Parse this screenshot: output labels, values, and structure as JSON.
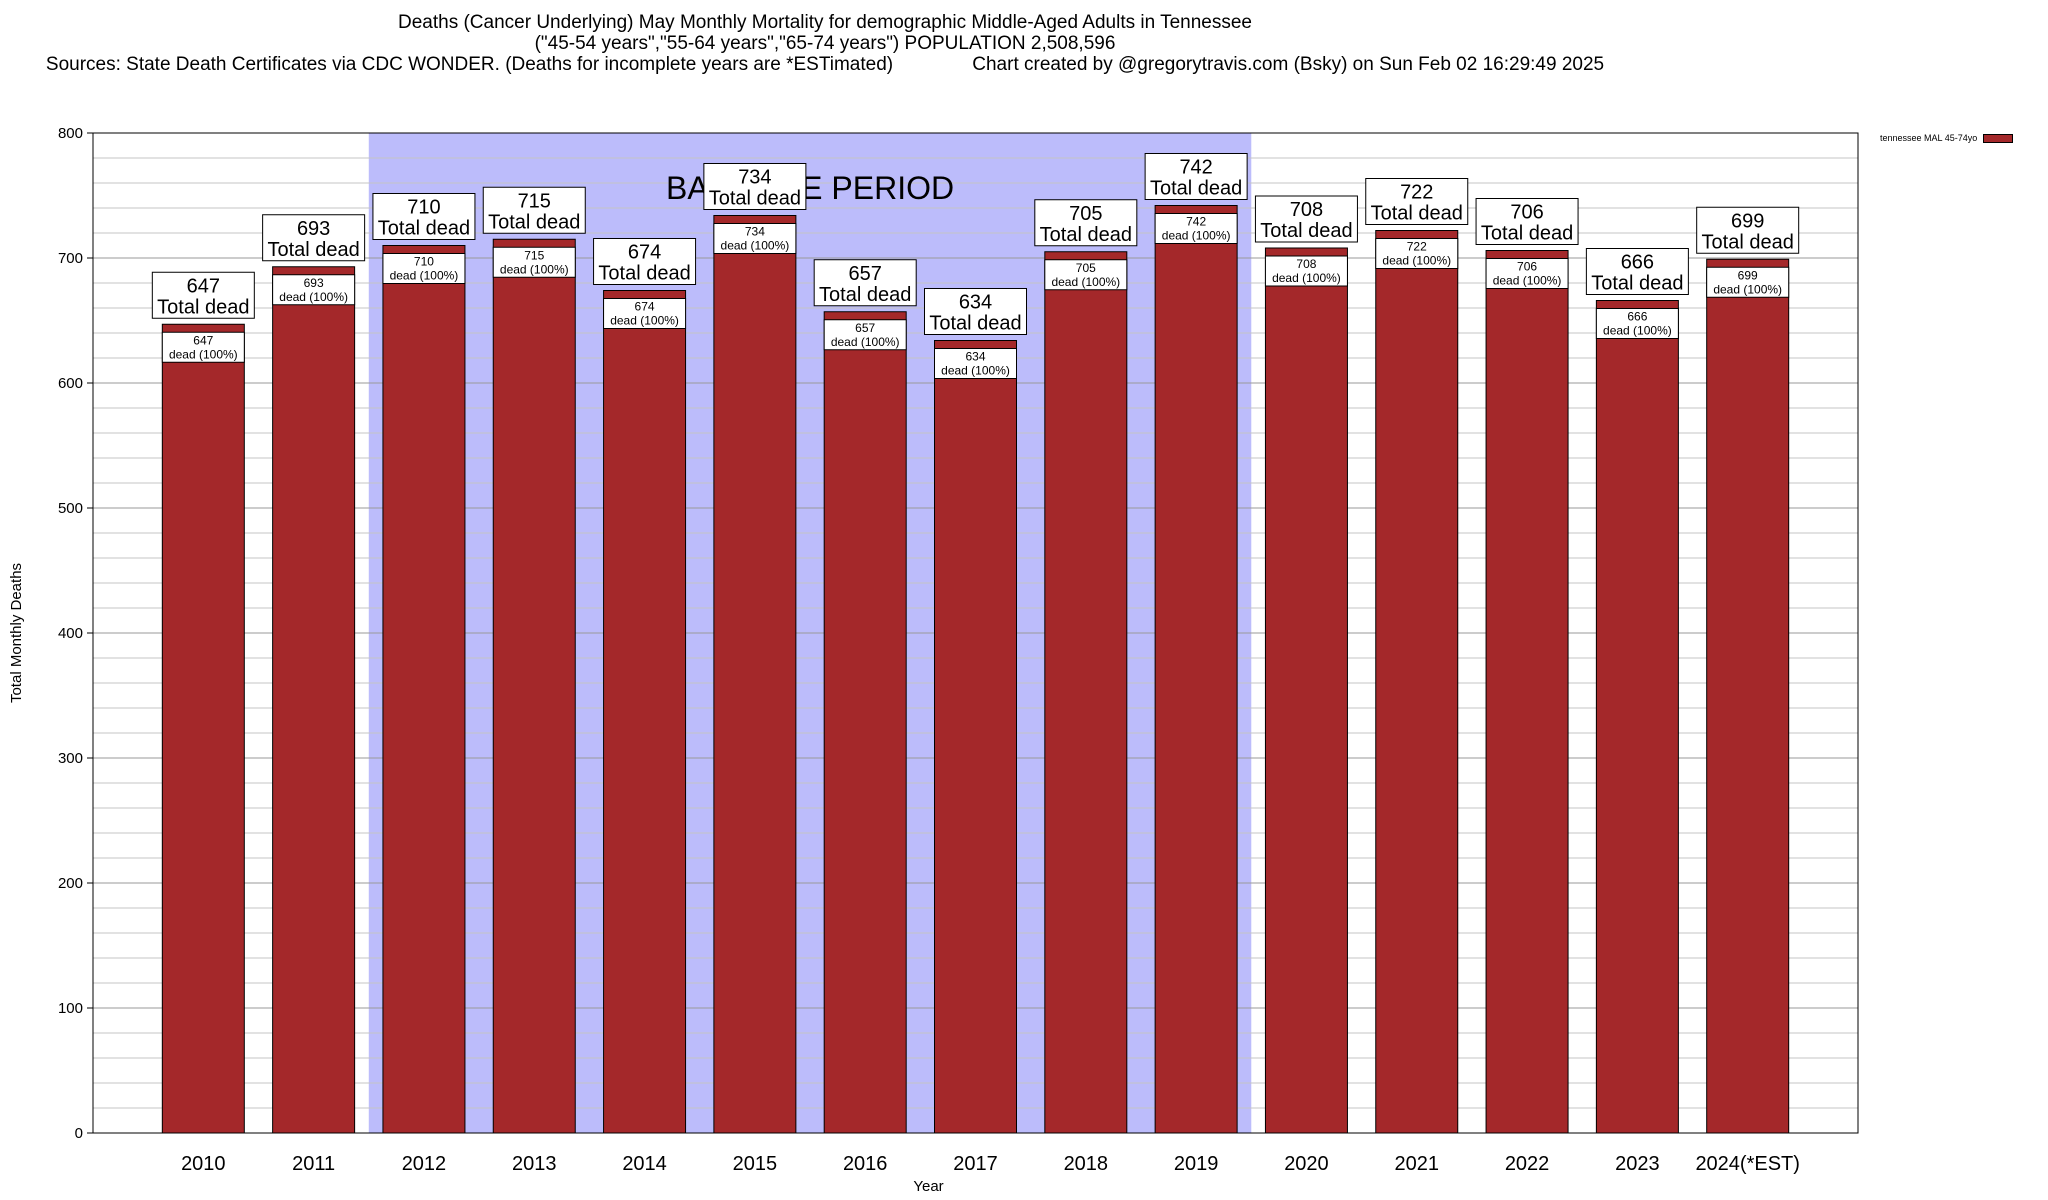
{
  "colors": {
    "bar": "#a4282a",
    "baseline": "#bcbcfb",
    "label_box": "#ffffff"
  },
  "titles": {
    "line1": "Deaths (Cancer Underlying) May Monthly Mortality for demographic Middle-Aged Adults in Tennessee",
    "line2": "(\"45-54 years\",\"55-64 years\",\"65-74 years\") POPULATION 2,508,596",
    "line3": "Sources: State Death Certificates via CDC WONDER. (Deaths for incomplete years are *ESTimated)               Chart created by @gregorytravis.com (Bsky) on Sun Feb 02 16:29:49 2025"
  },
  "chart_data": {
    "type": "bar",
    "title": "Deaths (Cancer Underlying) May Monthly Mortality for demographic Middle-Aged Adults in Tennessee",
    "xlabel": "Year",
    "ylabel": "Total Monthly Deaths",
    "ylim": [
      0,
      800
    ],
    "yticks": [
      0,
      100,
      200,
      300,
      400,
      500,
      600,
      700,
      800
    ],
    "grid": true,
    "legend_position": "top-right",
    "categories": [
      "2010",
      "2011",
      "2012",
      "2013",
      "2014",
      "2015",
      "2016",
      "2017",
      "2018",
      "2019",
      "2020",
      "2021",
      "2022",
      "2023",
      "2024(*EST)"
    ],
    "series": [
      {
        "name": "tennessee MAL 45-74yo",
        "values": [
          647,
          693,
          710,
          715,
          674,
          734,
          657,
          634,
          705,
          742,
          708,
          722,
          706,
          666,
          699
        ]
      }
    ],
    "total_label": "Total dead",
    "inner_label": "dead (100%)",
    "baseline_period": {
      "label": "BASELINE PERIOD",
      "start": "2012",
      "end": "2019"
    }
  }
}
